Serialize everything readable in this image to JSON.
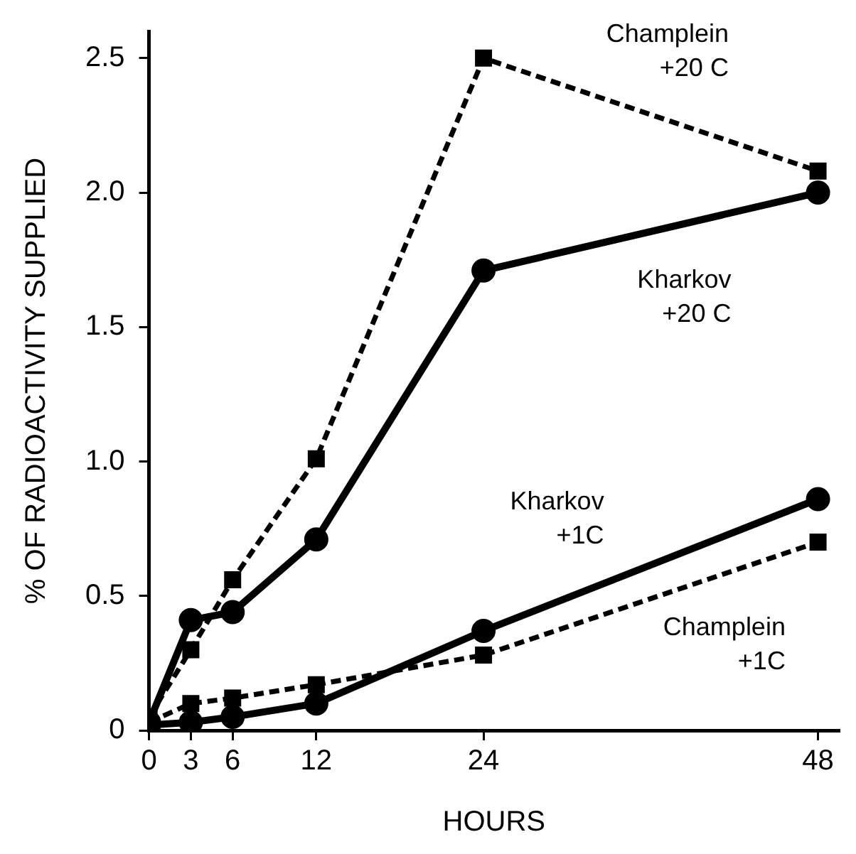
{
  "chart_data": {
    "type": "line",
    "xlabel": "HOURS",
    "ylabel": "% OF RADIOACTIVITY SUPPLIED",
    "x": [
      0,
      3,
      6,
      12,
      24,
      48
    ],
    "series": [
      {
        "name": "Champlein +20 C",
        "color": "#000000",
        "marker": "square",
        "line_style": "dashed",
        "values": [
          0.05,
          0.3,
          0.56,
          1.01,
          2.5,
          2.08
        ]
      },
      {
        "name": "Kharkov +20 C",
        "color": "#000000",
        "marker": "circle",
        "line_style": "solid",
        "values": [
          0.03,
          0.41,
          0.44,
          0.71,
          1.71,
          2.0
        ]
      },
      {
        "name": "Kharkov +1C",
        "color": "#000000",
        "marker": "circle",
        "line_style": "solid",
        "values": [
          0.02,
          0.03,
          0.05,
          0.1,
          0.37,
          0.86
        ]
      },
      {
        "name": "Champlein +1C",
        "color": "#000000",
        "marker": "square",
        "line_style": "dashed",
        "values": [
          0.03,
          0.1,
          0.12,
          0.17,
          0.28,
          0.7
        ]
      }
    ],
    "xlim": [
      0,
      49.5
    ],
    "xticks": [
      0,
      3,
      6,
      12,
      24,
      48
    ],
    "ylim": [
      0,
      2.6
    ],
    "yticks": [
      0,
      0.5,
      {
        "value": 1,
        "label": "1.0"
      },
      1.5,
      {
        "value": 2,
        "label": "2.0"
      },
      2.5
    ],
    "grid": false,
    "legend": false
  }
}
